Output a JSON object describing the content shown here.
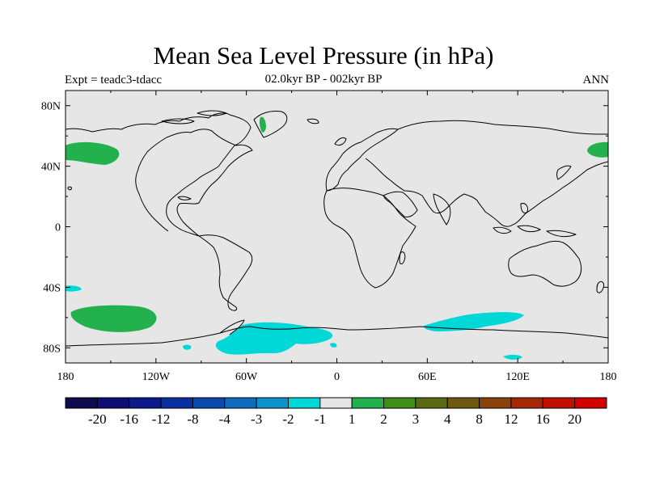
{
  "title": "Mean Sea Level Pressure (in hPa)",
  "subtitle_left": "Expt = teadc3-tdacc",
  "subtitle_center": "02.0kyr BP - 002kyr BP",
  "subtitle_right": "ANN",
  "map": {
    "projection": "cylindrical equidistant",
    "background_color": "#e6e6e6",
    "lon_range": [
      -180,
      180
    ],
    "lat_range": [
      -90,
      90
    ],
    "lon_ticks": [
      "180",
      "120W",
      "60W",
      "0",
      "60E",
      "120E",
      "180"
    ],
    "lat_ticks": [
      "80N",
      "40N",
      "0",
      "40S",
      "80S"
    ],
    "anomaly_regions": [
      {
        "area": "North Pacific",
        "class": "1 to 2",
        "color": "#22b14c"
      },
      {
        "area": "Greenland",
        "class": "1 to 2",
        "color": "#22b14c"
      },
      {
        "area": "South Pacific",
        "class": "1 to 2",
        "color": "#22b14c"
      },
      {
        "area": "Antarctic coast / Weddell Sea",
        "class": "-2 to -1",
        "color": "#00d8d8"
      },
      {
        "area": "Southern Indian Ocean",
        "class": "-2 to -1",
        "color": "#00d8d8"
      }
    ]
  },
  "colorbar": {
    "labels": [
      "-20",
      "-16",
      "-12",
      "-8",
      "-4",
      "-3",
      "-2",
      "-1",
      "1",
      "2",
      "3",
      "4",
      "8",
      "12",
      "16",
      "20"
    ],
    "colors": [
      "#100a4e",
      "#0d0e74",
      "#0b1b8e",
      "#0a2fa0",
      "#0a49ae",
      "#0e6cbe",
      "#0c93cc",
      "#00d8d8",
      "#e6e6e6",
      "#22b14c",
      "#3e8e18",
      "#5a6a12",
      "#6e5810",
      "#8a420c",
      "#a42808",
      "#c01004",
      "#d40000"
    ]
  }
}
